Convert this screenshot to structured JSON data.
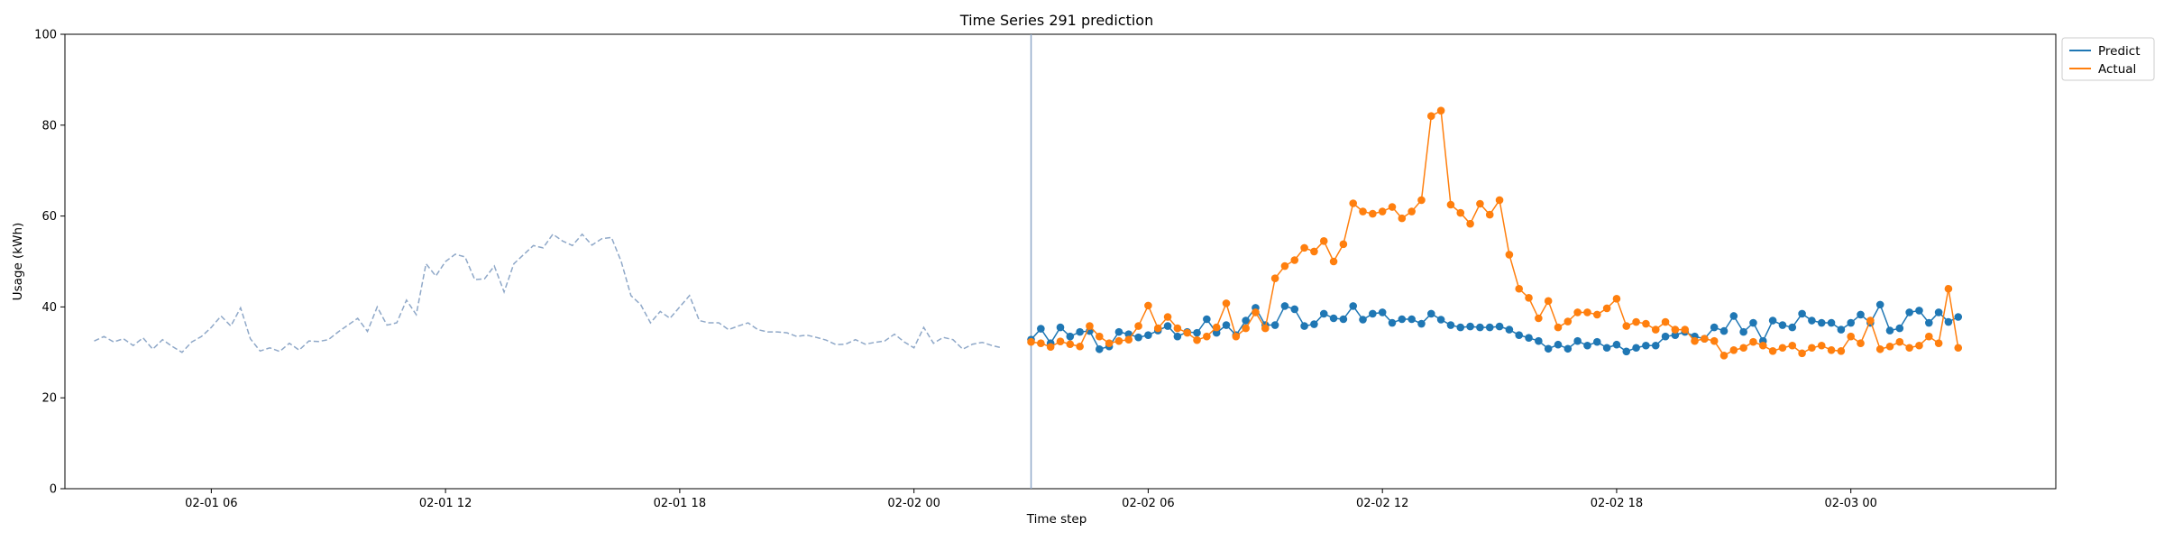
{
  "chart_data": {
    "type": "line",
    "title": "Time Series 291 prediction",
    "xlabel": "Time step",
    "ylabel": "Usage (kWh)",
    "ylim": [
      0,
      100
    ],
    "yticks": [
      0,
      20,
      40,
      60,
      80,
      100
    ],
    "xlim": [
      "2022-02-01 02:15",
      "2022-02-03 05:15"
    ],
    "xticks": [
      {
        "t": "2022-02-01 06:00",
        "label": "02-01 06"
      },
      {
        "t": "2022-02-01 12:00",
        "label": "02-01 12"
      },
      {
        "t": "2022-02-01 18:00",
        "label": "02-01 18"
      },
      {
        "t": "2022-02-02 00:00",
        "label": "02-02 00"
      },
      {
        "t": "2022-02-02 06:00",
        "label": "02-02 06"
      },
      {
        "t": "2022-02-02 12:00",
        "label": "02-02 12"
      },
      {
        "t": "2022-02-02 18:00",
        "label": "02-02 18"
      },
      {
        "t": "2022-02-03 00:00",
        "label": "02-03 00"
      }
    ],
    "interval_minutes": 15,
    "legend_position": "outside top-right",
    "grid": false,
    "forecast_start": "2022-02-02 03:00",
    "history": {
      "start": "2022-02-01 03:00",
      "color": "#8fa8c8",
      "style": "dashed",
      "values": [
        32.5,
        33.5,
        32.3,
        33,
        31.5,
        33.2,
        30.7,
        32.8,
        31.3,
        30,
        32.3,
        33.5,
        35.5,
        38,
        35.8,
        39.8,
        33,
        30.3,
        31,
        30.2,
        32,
        30.5,
        32.5,
        32.4,
        32.8,
        34.5,
        36,
        37.5,
        34.6,
        40,
        36,
        36.5,
        41.5,
        38.3,
        49.5,
        46.8,
        50,
        51.6,
        51,
        46,
        46.2,
        49,
        43.3,
        49.5,
        51.5,
        53.5,
        53,
        56,
        54.5,
        53.5,
        56,
        53.6,
        55,
        55.3,
        50,
        42.5,
        40.5,
        36.5,
        39,
        37.5,
        40,
        42.5,
        37,
        36.5,
        36.5,
        35,
        35.8,
        36.5,
        35,
        34.5,
        34.5,
        34.3,
        33.5,
        33.8,
        33.3,
        32.7,
        31.7,
        31.8,
        32.8,
        31.8,
        32.2,
        32.5,
        34,
        32.3,
        31,
        35.5,
        32,
        33.3,
        32.8,
        30.7,
        31.8,
        32.2,
        31.5,
        31
      ]
    },
    "series": [
      {
        "name": "Predict",
        "color": "#1f77b4",
        "start": "2022-02-02 03:00",
        "values": [
          32.8,
          35.2,
          32,
          35.5,
          33.5,
          34.5,
          34.7,
          30.7,
          31.3,
          34.5,
          34,
          33.3,
          33.8,
          34.8,
          35.8,
          33.5,
          34.5,
          34.3,
          37.3,
          34.3,
          36,
          33.8,
          37,
          39.8,
          36,
          36,
          40.2,
          39.5,
          35.8,
          36.2,
          38.5,
          37.5,
          37.3,
          40.2,
          37.2,
          38.5,
          38.8,
          36.5,
          37.3,
          37.3,
          36.3,
          38.5,
          37.2,
          36,
          35.5,
          35.7,
          35.5,
          35.5,
          35.7,
          35,
          33.8,
          33.2,
          32.5,
          30.8,
          31.7,
          30.8,
          32.5,
          31.5,
          32.3,
          31,
          31.7,
          30.2,
          31,
          31.5,
          31.5,
          33.5,
          33.8,
          34.5,
          33.5,
          33,
          35.5,
          34.7,
          38,
          34.5,
          36.5,
          32.5,
          37,
          36,
          35.5,
          38.5,
          37,
          36.5,
          36.5,
          35,
          36.5,
          38.3,
          36.5,
          40.5,
          34.8,
          35.3,
          38.8,
          39.2,
          36.5,
          38.8,
          36.7,
          37.8
        ]
      },
      {
        "name": "Actual",
        "color": "#ff7f0e",
        "start": "2022-02-02 03:00",
        "values": [
          32.3,
          32,
          31.2,
          32.4,
          31.8,
          31.3,
          35.8,
          33.5,
          32,
          32.5,
          32.8,
          35.8,
          40.3,
          35.3,
          37.8,
          35.3,
          34.3,
          32.7,
          33.5,
          35.5,
          40.8,
          33.5,
          35.3,
          38.8,
          35.3,
          46.3,
          49,
          50.3,
          53,
          52.2,
          54.5,
          50,
          53.8,
          62.8,
          61,
          60.5,
          61,
          62,
          59.5,
          61,
          63.5,
          82,
          83.2,
          62.5,
          60.7,
          58.3,
          62.7,
          60.3,
          63.5,
          51.5,
          44,
          42,
          37.5,
          41.3,
          35.5,
          36.8,
          38.8,
          38.8,
          38.3,
          39.7,
          41.8,
          35.8,
          36.7,
          36.3,
          35,
          36.7,
          35,
          35,
          32.5,
          33,
          32.5,
          29.3,
          30.5,
          31,
          32.3,
          31.5,
          30.3,
          31,
          31.5,
          29.8,
          31,
          31.5,
          30.5,
          30.3,
          33.5,
          32,
          37,
          30.7,
          31.3,
          32.3,
          31,
          31.5,
          33.5,
          32,
          44,
          31
        ]
      }
    ]
  }
}
